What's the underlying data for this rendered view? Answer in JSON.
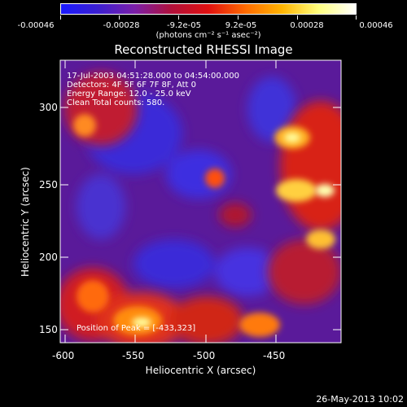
{
  "colorbar": {
    "tick_labels": [
      "-0.00046",
      "-0.00028",
      "-9.2e-05",
      "9.2e-05",
      "0.00028",
      "0.00046"
    ],
    "units": "(photons cm⁻² s⁻¹ asec⁻²)",
    "gradient_colors": [
      "#1a1aff",
      "#3b1fd0",
      "#7b1fa8",
      "#b0103a",
      "#e01010",
      "#ff6a00",
      "#ffb400",
      "#ffff80",
      "#ffffff"
    ]
  },
  "plot": {
    "title": "Reconstructed RHESSI Image",
    "info_lines": [
      "17-Jul-2003 04:51:28.000 to 04:54:00.000",
      "Detectors: 4F 5F 6F 7F 8F, Att 0",
      "Energy Range: 12.0 - 25.0 keV",
      "Clean     Total counts: 580."
    ],
    "peak_text": "Position of Peak = [-433,323]",
    "xlabel": "Heliocentric X (arcsec)",
    "ylabel": "Heliocentric Y (arcsec)",
    "xticks": [
      "-600",
      "-550",
      "-500",
      "-450"
    ],
    "yticks": [
      "150",
      "200",
      "250",
      "300"
    ]
  },
  "footer": {
    "datestamp": "26-May-2013 10:02"
  }
}
